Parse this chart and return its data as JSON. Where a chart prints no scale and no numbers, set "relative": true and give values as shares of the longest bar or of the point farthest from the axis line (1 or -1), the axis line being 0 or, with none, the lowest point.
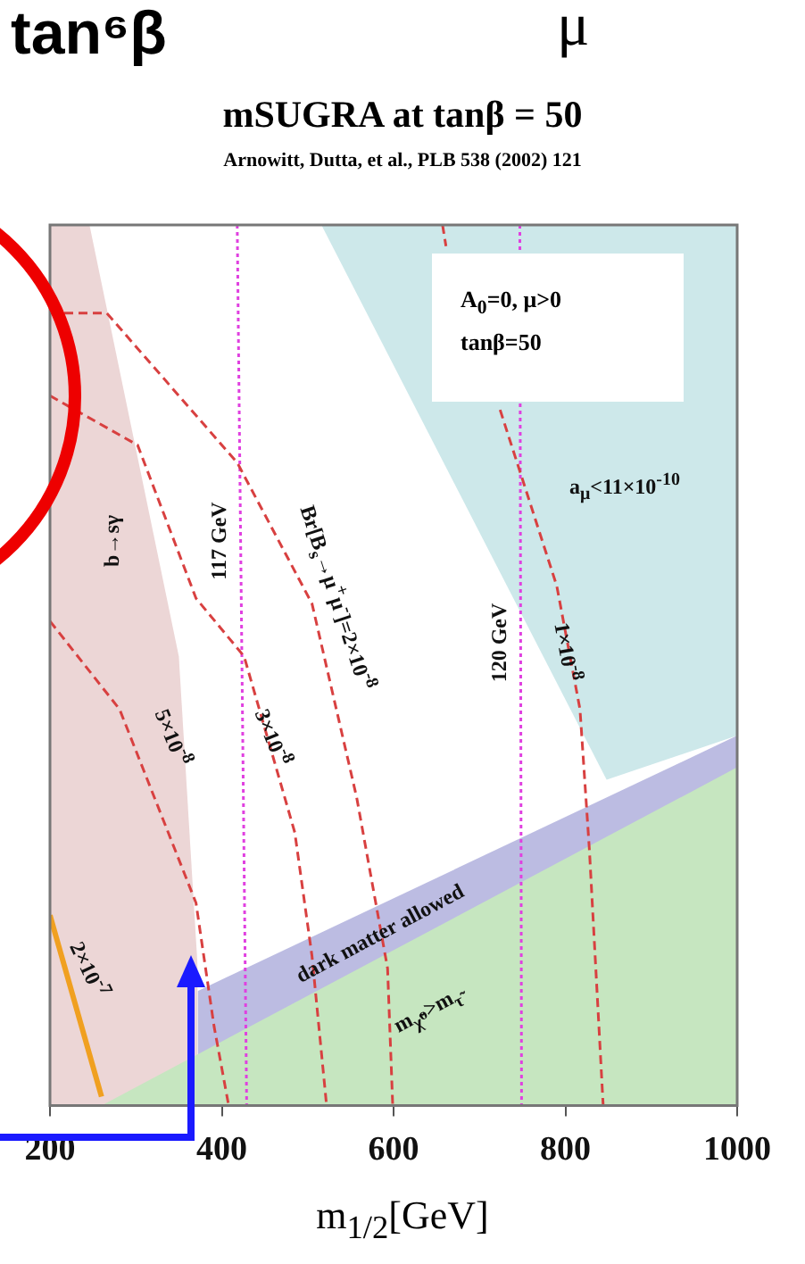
{
  "chart_data": {
    "type": "line",
    "title": "mSUGRA at tanβ = 50",
    "subtitle": "Arnowitt, Dutta, et al., PLB 538 (2002) 121",
    "xlabel": "m$_{1/2}$[GeV]",
    "relative": true,
    "marker": "none",
    "xlim": [
      200,
      1000
    ],
    "xticks": [
      200,
      400,
      600,
      800,
      1000
    ],
    "series": [
      {
        "type": "area",
        "color": "#ecd6d6",
        "x": [
          200,
          246,
          350,
          372
        ],
        "values": [
          1,
          1,
          0.51,
          0.156
        ]
      },
      {
        "type": "area",
        "color": "#cde8ea",
        "x": [
          516,
          848,
          1000,
          1000,
          516
        ],
        "values": [
          1,
          0.37,
          0.42,
          1,
          1
        ]
      },
      {
        "type": "area",
        "color": "#bcbce2",
        "x": [
          372,
          1000
        ],
        "values": [
          0.13,
          0.42
        ]
      },
      {
        "type": "area",
        "color": "#c6e6c0",
        "x": [
          260,
          1000
        ],
        "values": [
          0,
          0.384
        ]
      },
      {
        "type": "line",
        "color": "#d84040",
        "line_style": "dashed",
        "x": [
          200,
          281,
          370,
          391,
          408
        ],
        "values": [
          0.55,
          0.45,
          0.23,
          0.09,
          0
        ]
      },
      {
        "type": "line",
        "color": "#d84040",
        "line_style": "dashed",
        "x": [
          200,
          302,
          370,
          426,
          485,
          505,
          522
        ],
        "values": [
          0.806,
          0.75,
          0.576,
          0.51,
          0.31,
          0.17,
          0
        ]
      },
      {
        "type": "line",
        "color": "#d84040",
        "line_style": "dashed",
        "x": [
          200,
          266,
          418,
          505,
          557,
          593,
          599
        ],
        "values": [
          0.9,
          0.9,
          0.73,
          0.57,
          0.35,
          0.156,
          0
        ]
      },
      {
        "type": "line",
        "color": "#d84040",
        "line_style": "dashed",
        "x": [
          657,
          661,
          686,
          724,
          790,
          817,
          828,
          844
        ],
        "values": [
          1,
          0.976,
          null,
          0.79,
          0.59,
          0.45,
          0.29,
          0
        ]
      },
      {
        "type": "line",
        "color": "#f0a020",
        "line_style": "solid",
        "x": [
          200,
          260
        ],
        "values": [
          0.216,
          0.01
        ]
      },
      {
        "type": "line",
        "color": "#e040e0",
        "line_style": "dotted",
        "x": [
          418,
          429
        ],
        "values": [
          1,
          0
        ]
      },
      {
        "type": "line",
        "color": "#e040e0",
        "line_style": "dotted",
        "x": [
          747,
          749
        ],
        "values": [
          1,
          0
        ]
      }
    ],
    "annotations": [
      "tan⁶β",
      "μ",
      "A$_{0}$=0,  μ>0",
      "tanβ=50",
      "b→sγ",
      "117 GeV",
      "Br[B$_{s}$→μ$^{+}$μ$^{-}$]=2×10$^{-8}$",
      "a$_{μ}$<11×10$^{-10}$",
      "1×10$^{-8}$",
      "120 GeV",
      "5×10$^{-8}$",
      "3×10$^{-8}$",
      "dark matter allowed",
      "m$_{χ̃⁰}$>m$_{τ̃}$",
      "2×10$^{-7}$"
    ]
  }
}
